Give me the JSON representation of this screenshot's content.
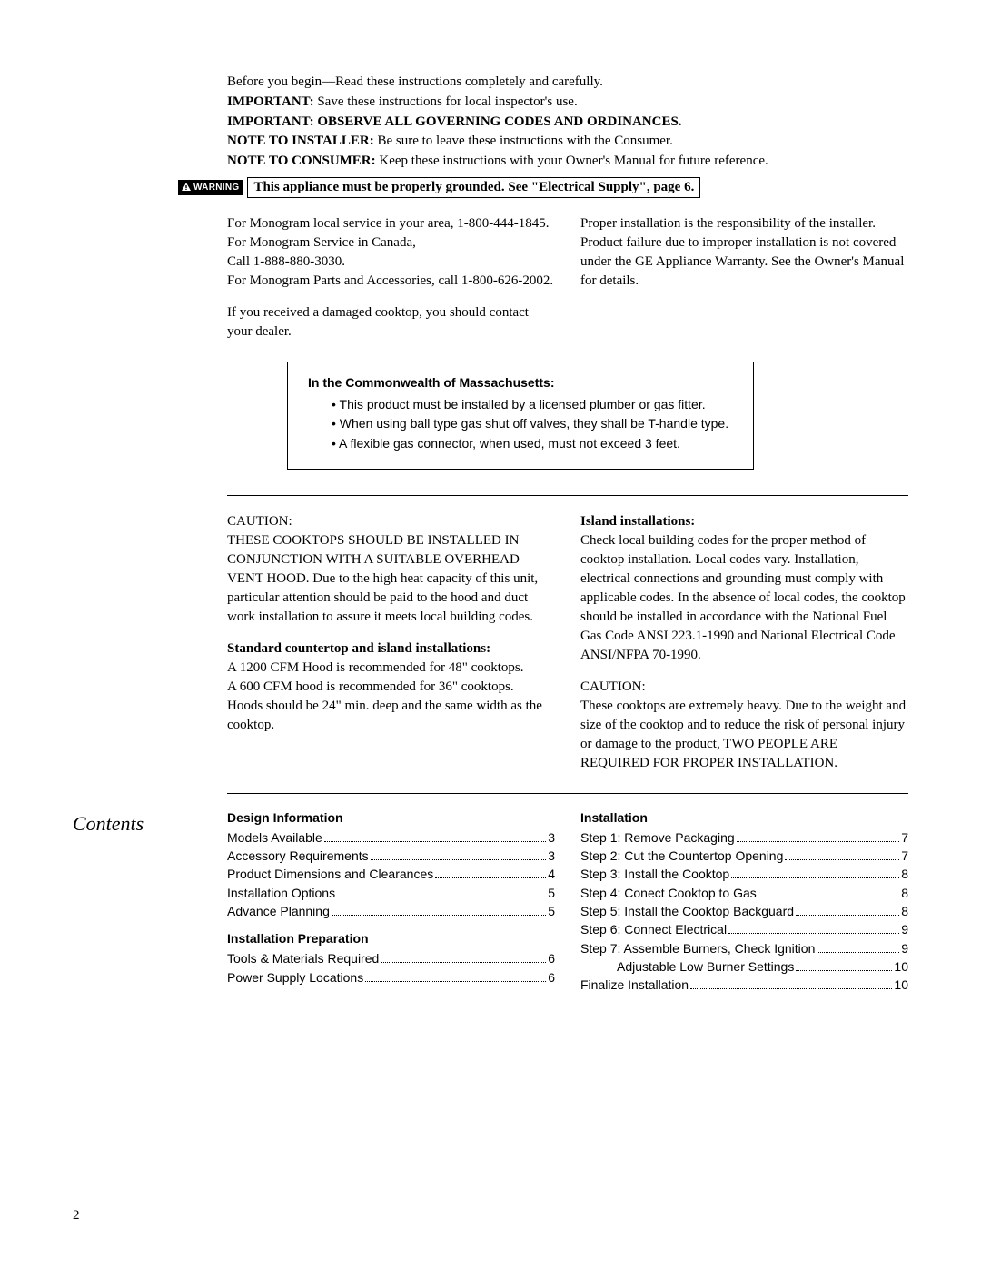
{
  "intro": {
    "line1": "Before you begin—Read these instructions completely and carefully.",
    "line2_bold": "IMPORTANT:",
    "line2_rest": " Save these instructions for local inspector's use.",
    "line3": "IMPORTANT: OBSERVE ALL GOVERNING CODES AND ORDINANCES.",
    "line4_bold": "NOTE TO INSTALLER:",
    "line4_rest": " Be sure to leave these instructions with the Consumer.",
    "line5_bold": "NOTE TO CONSUMER:",
    "line5_rest": " Keep these instructions with your Owner's Manual for future reference."
  },
  "warning": {
    "badge": "WARNING",
    "text": "This appliance must be properly grounded. See \"Electrical Supply\", page 6."
  },
  "service": {
    "left_p1": "For Monogram local service in your area, 1-800-444-1845.\nFor Monogram Service in Canada,\nCall 1-888-880-3030.\nFor Monogram Parts and Accessories, call 1-800-626-2002.",
    "left_p2": "If you received a damaged cooktop, you should contact your dealer.",
    "right_p1": "Proper installation is the responsibility of the installer. Product failure due to improper installation is not covered under the GE Appliance Warranty. See the Owner's Manual for details."
  },
  "ma": {
    "heading": "In the Commonwealth of Massachusetts:",
    "items": [
      "• This product must be installed by a licensed plumber or gas fitter.",
      "• When using ball type gas shut off valves, they shall be T-handle type.",
      "• A flexible gas connector, when used, must not exceed 3 feet."
    ]
  },
  "cautions": {
    "left_p1": "CAUTION:\nTHESE COOKTOPS SHOULD BE INSTALLED IN CONJUNCTION WITH A SUITABLE OVERHEAD VENT HOOD. Due to the high heat capacity of this unit, particular attention should be paid to the hood and duct work installation to assure it meets local building codes.",
    "left_h2": "Standard countertop and island installations:",
    "left_p2": "A 1200 CFM Hood is recommended for 48\" cooktops.\nA 600 CFM hood is recommended for 36\" cooktops.\nHoods should be 24\" min. deep and the same width as the cooktop.",
    "right_h1": "Island installations:",
    "right_p1": "Check local building codes for the proper method of cooktop installation. Local codes vary. Installation, electrical connections and grounding must comply with applicable codes. In the absence of local codes, the cooktop should be installed in accordance with the National Fuel Gas Code ANSI 223.1-1990 and National Electrical Code ANSI/NFPA 70-1990.",
    "right_p2": "CAUTION:\nThese cooktops are extremely heavy. Due to the weight and size of the cooktop and to reduce the risk of personal injury or damage to the product, TWO PEOPLE ARE REQUIRED FOR PROPER INSTALLATION."
  },
  "contents": {
    "label": "Contents",
    "left": {
      "h1": "Design Information",
      "items1": [
        {
          "label": "Models Available",
          "page": "3"
        },
        {
          "label": "Accessory Requirements",
          "page": "3"
        },
        {
          "label": "Product Dimensions and Clearances",
          "page": "4"
        },
        {
          "label": "Installation Options",
          "page": "5"
        },
        {
          "label": "Advance Planning",
          "page": "5"
        }
      ],
      "h2": "Installation Preparation",
      "items2": [
        {
          "label": "Tools & Materials Required",
          "page": "6"
        },
        {
          "label": "Power Supply Locations",
          "page": "6"
        }
      ]
    },
    "right": {
      "h1": "Installation",
      "items": [
        {
          "label": "Step 1: Remove Packaging",
          "page": "7",
          "indent": false
        },
        {
          "label": "Step 2: Cut the Countertop Opening",
          "page": "7",
          "indent": false
        },
        {
          "label": "Step 3: Install the Cooktop",
          "page": "8",
          "indent": false
        },
        {
          "label": "Step 4: Conect Cooktop to Gas",
          "page": "8",
          "indent": false
        },
        {
          "label": "Step 5: Install the Cooktop Backguard",
          "page": "8",
          "indent": false
        },
        {
          "label": "Step 6: Connect Electrical",
          "page": "9",
          "indent": false
        },
        {
          "label": "Step 7: Assemble Burners, Check Ignition",
          "page": "9",
          "indent": false
        },
        {
          "label": "Adjustable Low Burner Settings",
          "page": "10",
          "indent": true
        },
        {
          "label": "Finalize Installation",
          "page": "10",
          "indent": false
        }
      ]
    }
  },
  "page_number": "2"
}
